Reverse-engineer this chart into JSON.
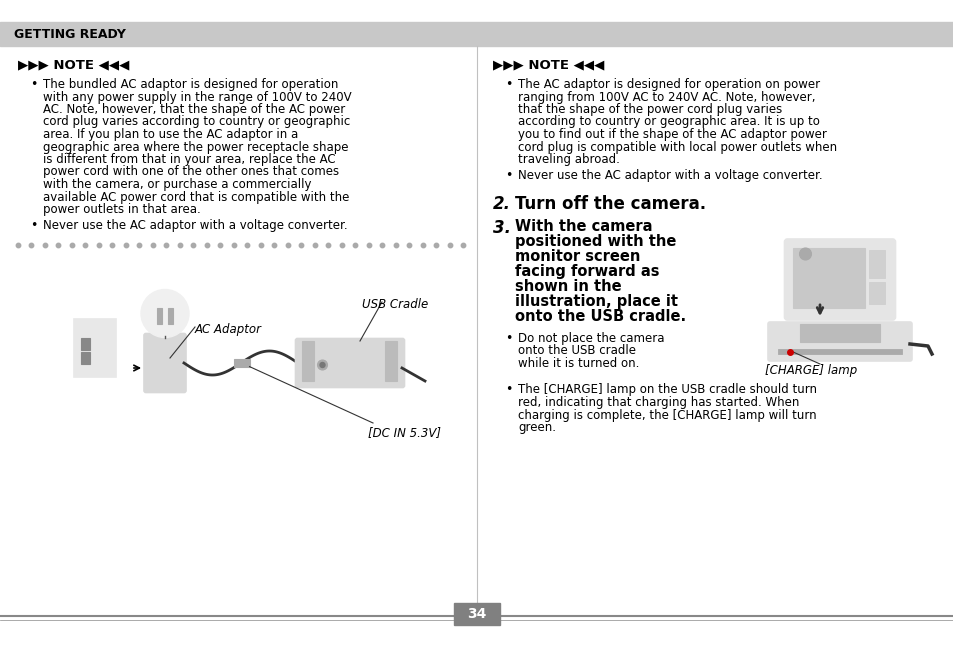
{
  "bg_color": "#ffffff",
  "header_bg": "#c8c8c8",
  "header_text": "GETTING READY",
  "header_text_color": "#000000",
  "page_number": "34",
  "page_number_bg": "#808080",
  "page_number_color": "#ffffff",
  "dot_separator_color": "#aaaaaa",
  "line_color": "#888888",
  "note_header": "▶▶▶ NOTE ◀◀◀",
  "left_bullet1_lines": [
    "The bundled AC adaptor is designed for operation",
    "with any power supply in the range of 100V to 240V",
    "AC. Note, however, that the shape of the AC power",
    "cord plug varies according to country or geographic",
    "area. If you plan to use the AC adaptor in a",
    "geographic area where the power receptacle shape",
    "is different from that in your area, replace the AC",
    "power cord with one of the other ones that comes",
    "with the camera, or purchase a commercially",
    "available AC power cord that is compatible with the",
    "power outlets in that area."
  ],
  "left_bullet2": "Never use the AC adaptor with a voltage converter.",
  "right_bullet1_lines": [
    "The AC adaptor is designed for operation on power",
    "ranging from 100V AC to 240V AC. Note, however,",
    "that the shape of the power cord plug varies",
    "according to country or geographic area. It is up to",
    "you to find out if the shape of the AC adaptor power",
    "cord plug is compatible with local power outlets when",
    "traveling abroad."
  ],
  "right_bullet2": "Never use the AC adaptor with a voltage converter.",
  "step2_num": "2.",
  "step2_text": "Turn off the camera.",
  "step3_num": "3.",
  "step3_lines": [
    "With the camera",
    "positioned with the",
    "monitor screen",
    "facing forward as",
    "shown in the",
    "illustration, place it",
    "onto the USB cradle."
  ],
  "sub_bullet_lines": [
    "Do not place the camera",
    "onto the USB cradle",
    "while it is turned on."
  ],
  "charge_lamp_label": "[CHARGE] lamp",
  "step4_lines": [
    "The [CHARGE] lamp on the USB cradle should turn",
    "red, indicating that charging has started. When",
    "charging is complete, the [CHARGE] lamp will turn",
    "green."
  ],
  "ac_adaptor_label": "AC Adaptor",
  "usb_cradle_label": "USB Cradle",
  "dc_in_label": "[DC IN 5.3V]"
}
